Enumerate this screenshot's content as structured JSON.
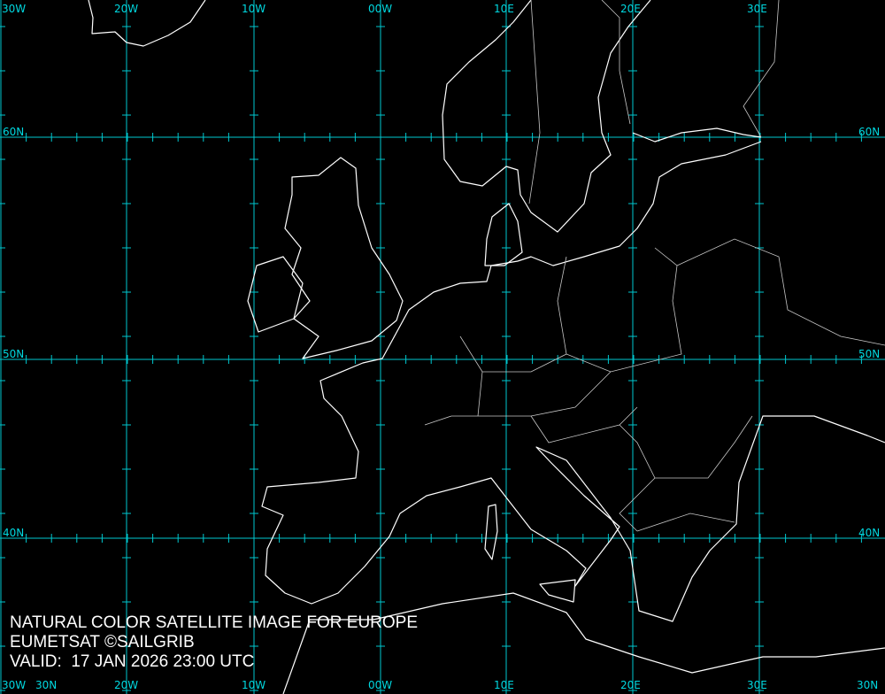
{
  "map": {
    "caption": {
      "title": "NATURAL COLOR SATELLITE IMAGE FOR EUROPE",
      "credit": "EUMETSAT ©SAILGRIB",
      "valid": "VALID:  17 JAN 2026 23:00 UTC"
    },
    "longitude_labels": [
      "30W",
      "20W",
      "10W",
      "00W",
      "10E",
      "20E",
      "30E"
    ],
    "latitude_labels": [
      "60N",
      "50N",
      "40N",
      "30N"
    ],
    "colors": {
      "background": "#000000",
      "grid": "#00c8d0",
      "coastline": "#ffffff",
      "borders": "#c8c8c8",
      "text": "#ffffff"
    }
  }
}
